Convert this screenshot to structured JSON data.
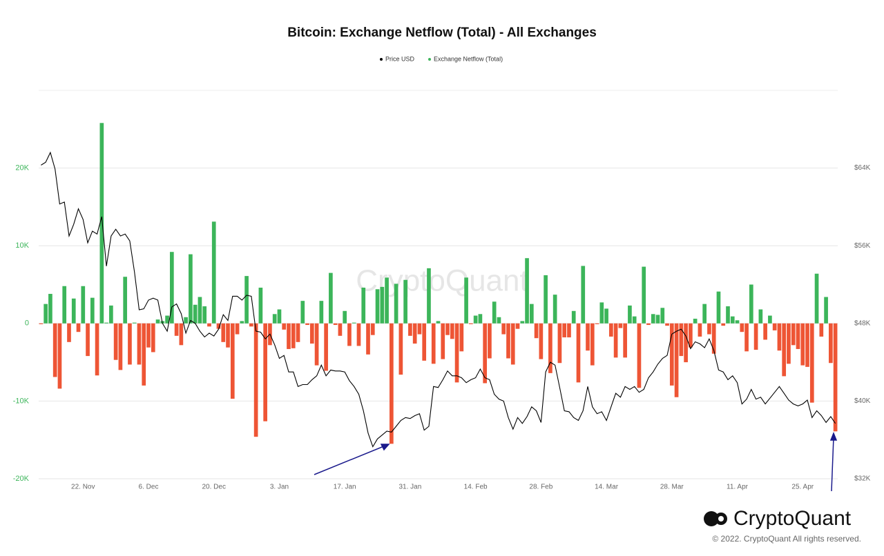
{
  "chart_data": {
    "type": "bar",
    "title": "Bitcoin: Exchange Netflow (Total) - All Exchanges",
    "watermark": "CryptoQuant",
    "logo_text": "CryptoQuant",
    "copyright": "© 2022. CryptoQuant All rights reserved.",
    "categories": [
      null,
      null,
      null,
      null,
      null,
      null,
      null,
      null,
      null,
      "22. Nov",
      null,
      null,
      null,
      null,
      null,
      null,
      null,
      null,
      null,
      null,
      null,
      null,
      null,
      "6. Dec",
      null,
      null,
      null,
      null,
      null,
      null,
      null,
      null,
      null,
      null,
      null,
      null,
      null,
      "20. Dec",
      null,
      null,
      null,
      null,
      null,
      null,
      null,
      null,
      null,
      null,
      null,
      null,
      null,
      "3. Jan",
      null,
      null,
      null,
      null,
      null,
      null,
      null,
      null,
      null,
      null,
      null,
      null,
      null,
      "17. Jan",
      null,
      null,
      null,
      null,
      null,
      null,
      null,
      null,
      null,
      null,
      null,
      null,
      null,
      "31. Jan",
      null,
      null,
      null,
      null,
      null,
      null,
      null,
      null,
      null,
      null,
      null,
      null,
      null,
      "14. Feb",
      null,
      null,
      null,
      null,
      null,
      null,
      null,
      null,
      null,
      null,
      null,
      null,
      null,
      "28. Feb",
      null,
      null,
      null,
      null,
      null,
      null,
      null,
      null,
      null,
      null,
      null,
      null,
      null,
      "14. Mar",
      null,
      null,
      null,
      null,
      null,
      null,
      null,
      null,
      null,
      null,
      null,
      null,
      null,
      "28. Mar",
      null,
      null,
      null,
      null,
      null,
      null,
      null,
      null,
      null,
      null,
      null,
      null,
      null,
      "11. Apr",
      null,
      null,
      null,
      null,
      null,
      null,
      null,
      null,
      null,
      null,
      null,
      null,
      null,
      "25. Apr",
      null,
      null,
      null,
      null,
      null,
      null,
      null
    ],
    "series": [
      {
        "name": "Price USD",
        "type": "line",
        "axis": "y2",
        "color": "#000000",
        "values": [
          64300,
          64600,
          65600,
          63900,
          60300,
          60500,
          57000,
          58200,
          59800,
          58700,
          56300,
          57500,
          57200,
          59000,
          53900,
          57000,
          57700,
          57000,
          57200,
          56500,
          53300,
          49400,
          49500,
          50400,
          50600,
          50400,
          48000,
          47200,
          49700,
          50000,
          49000,
          47000,
          48300,
          48000,
          47200,
          46600,
          47000,
          46700,
          47400,
          48900,
          48300,
          50800,
          50800,
          50400,
          50900,
          50800,
          47200,
          47100,
          46400,
          46900,
          45800,
          44400,
          44700,
          43000,
          43000,
          41500,
          41700,
          41700,
          42200,
          42600,
          43700,
          42600,
          43200,
          43100,
          43100,
          43000,
          42100,
          41500,
          40700,
          39000,
          36700,
          35300,
          36100,
          36500,
          36900,
          36800,
          37400,
          38000,
          38300,
          38200,
          38500,
          38700,
          37000,
          37400,
          41500,
          41400,
          42200,
          43100,
          42600,
          42600,
          42400,
          41900,
          42200,
          42400,
          43300,
          42400,
          42200,
          40700,
          40200,
          40000,
          38300,
          37100,
          38300,
          37700,
          38400,
          39400,
          39000,
          37800,
          43000,
          44000,
          43700,
          41400,
          39000,
          38900,
          38300,
          38000,
          39000,
          41500,
          39400,
          38700,
          38900,
          38000,
          39400,
          40800,
          40400,
          41500,
          41200,
          41500,
          40900,
          41200,
          42400,
          43000,
          43800,
          44400,
          44700,
          46900,
          47200,
          47400,
          46700,
          45400,
          46100,
          45900,
          45500,
          46400,
          45200,
          43200,
          43000,
          42200,
          42600,
          41900,
          39700,
          40200,
          41200,
          40200,
          40400,
          39700,
          40300,
          40900,
          41500,
          40800,
          40100,
          39700,
          39500,
          39700,
          40100,
          38300,
          39000,
          38500,
          37800,
          38400,
          37700
        ]
      },
      {
        "name": "Exchange Netflow (Total)",
        "type": "bar",
        "color": "#3cb55a",
        "negative_color": "#ee5535",
        "values": [
          -100,
          2500,
          3800,
          -6900,
          -8400,
          4800,
          -2400,
          3200,
          -1100,
          4800,
          -4200,
          3300,
          -6700,
          25800,
          100,
          2300,
          -4700,
          -6000,
          6000,
          -5300,
          100,
          -5300,
          -8000,
          -3100,
          -3700,
          500,
          300,
          1000,
          9200,
          -1600,
          -2800,
          800,
          8900,
          2400,
          3400,
          2200,
          -400,
          13100,
          -700,
          -2400,
          -3100,
          -9700,
          -1400,
          300,
          6100,
          -400,
          -14600,
          4600,
          -12600,
          -2800,
          1200,
          1800,
          -800,
          -3300,
          -3200,
          -2400,
          2900,
          -200,
          -2600,
          -5400,
          2900,
          -6100,
          6500,
          -200,
          -1600,
          1600,
          -2900,
          100,
          -2900,
          4600,
          -4000,
          -1500,
          4400,
          4700,
          5900,
          -15500,
          5100,
          -6600,
          5600,
          -1600,
          -2600,
          -1400,
          -4800,
          7100,
          -5200,
          300,
          -4600,
          -1500,
          -2000,
          -7600,
          -3600,
          5900,
          -100,
          1000,
          1200,
          -7700,
          -4500,
          2800,
          800,
          -1400,
          -4500,
          -5300,
          -700,
          300,
          8400,
          2500,
          -1900,
          -4600,
          6200,
          -6400,
          3700,
          -5100,
          -1800,
          -1800,
          1600,
          -7600,
          7400,
          -3500,
          -5400,
          -100,
          2700,
          1900,
          -1700,
          -4400,
          -600,
          -4400,
          2300,
          900,
          -8300,
          7300,
          -200,
          1200,
          1100,
          2000,
          -300,
          -8000,
          -9500,
          -4200,
          -5000,
          -3100,
          600,
          -1700,
          2500,
          -1400,
          -3900,
          4100,
          -300,
          2200,
          900,
          400,
          -1100,
          -3600,
          5000,
          -3400,
          1800,
          -2100,
          1000,
          -900,
          -3500,
          -6800,
          -5200,
          -2800,
          -3300,
          -5400,
          -5600,
          -10200,
          6400,
          -1700,
          3400,
          -5100,
          -13900
        ]
      }
    ],
    "ylim": [
      -20000,
      30000
    ],
    "yticks": [
      {
        "value": -20000,
        "label": "-20K"
      },
      {
        "value": -10000,
        "label": "-10K"
      },
      0,
      {
        "value": 10000,
        "label": "10K"
      },
      {
        "value": 20000,
        "label": "20K"
      }
    ],
    "y_tick_color": "#3cb55a",
    "y2lim": [
      32000,
      72000
    ],
    "y2ticks": [
      {
        "value": 32000,
        "label": "$32K"
      },
      {
        "value": 40000,
        "label": "$40K"
      },
      {
        "value": 48000,
        "label": "$48K"
      },
      {
        "value": 56000,
        "label": "$56K"
      },
      {
        "value": 64000,
        "label": "$64K"
      }
    ],
    "grid": true
  }
}
